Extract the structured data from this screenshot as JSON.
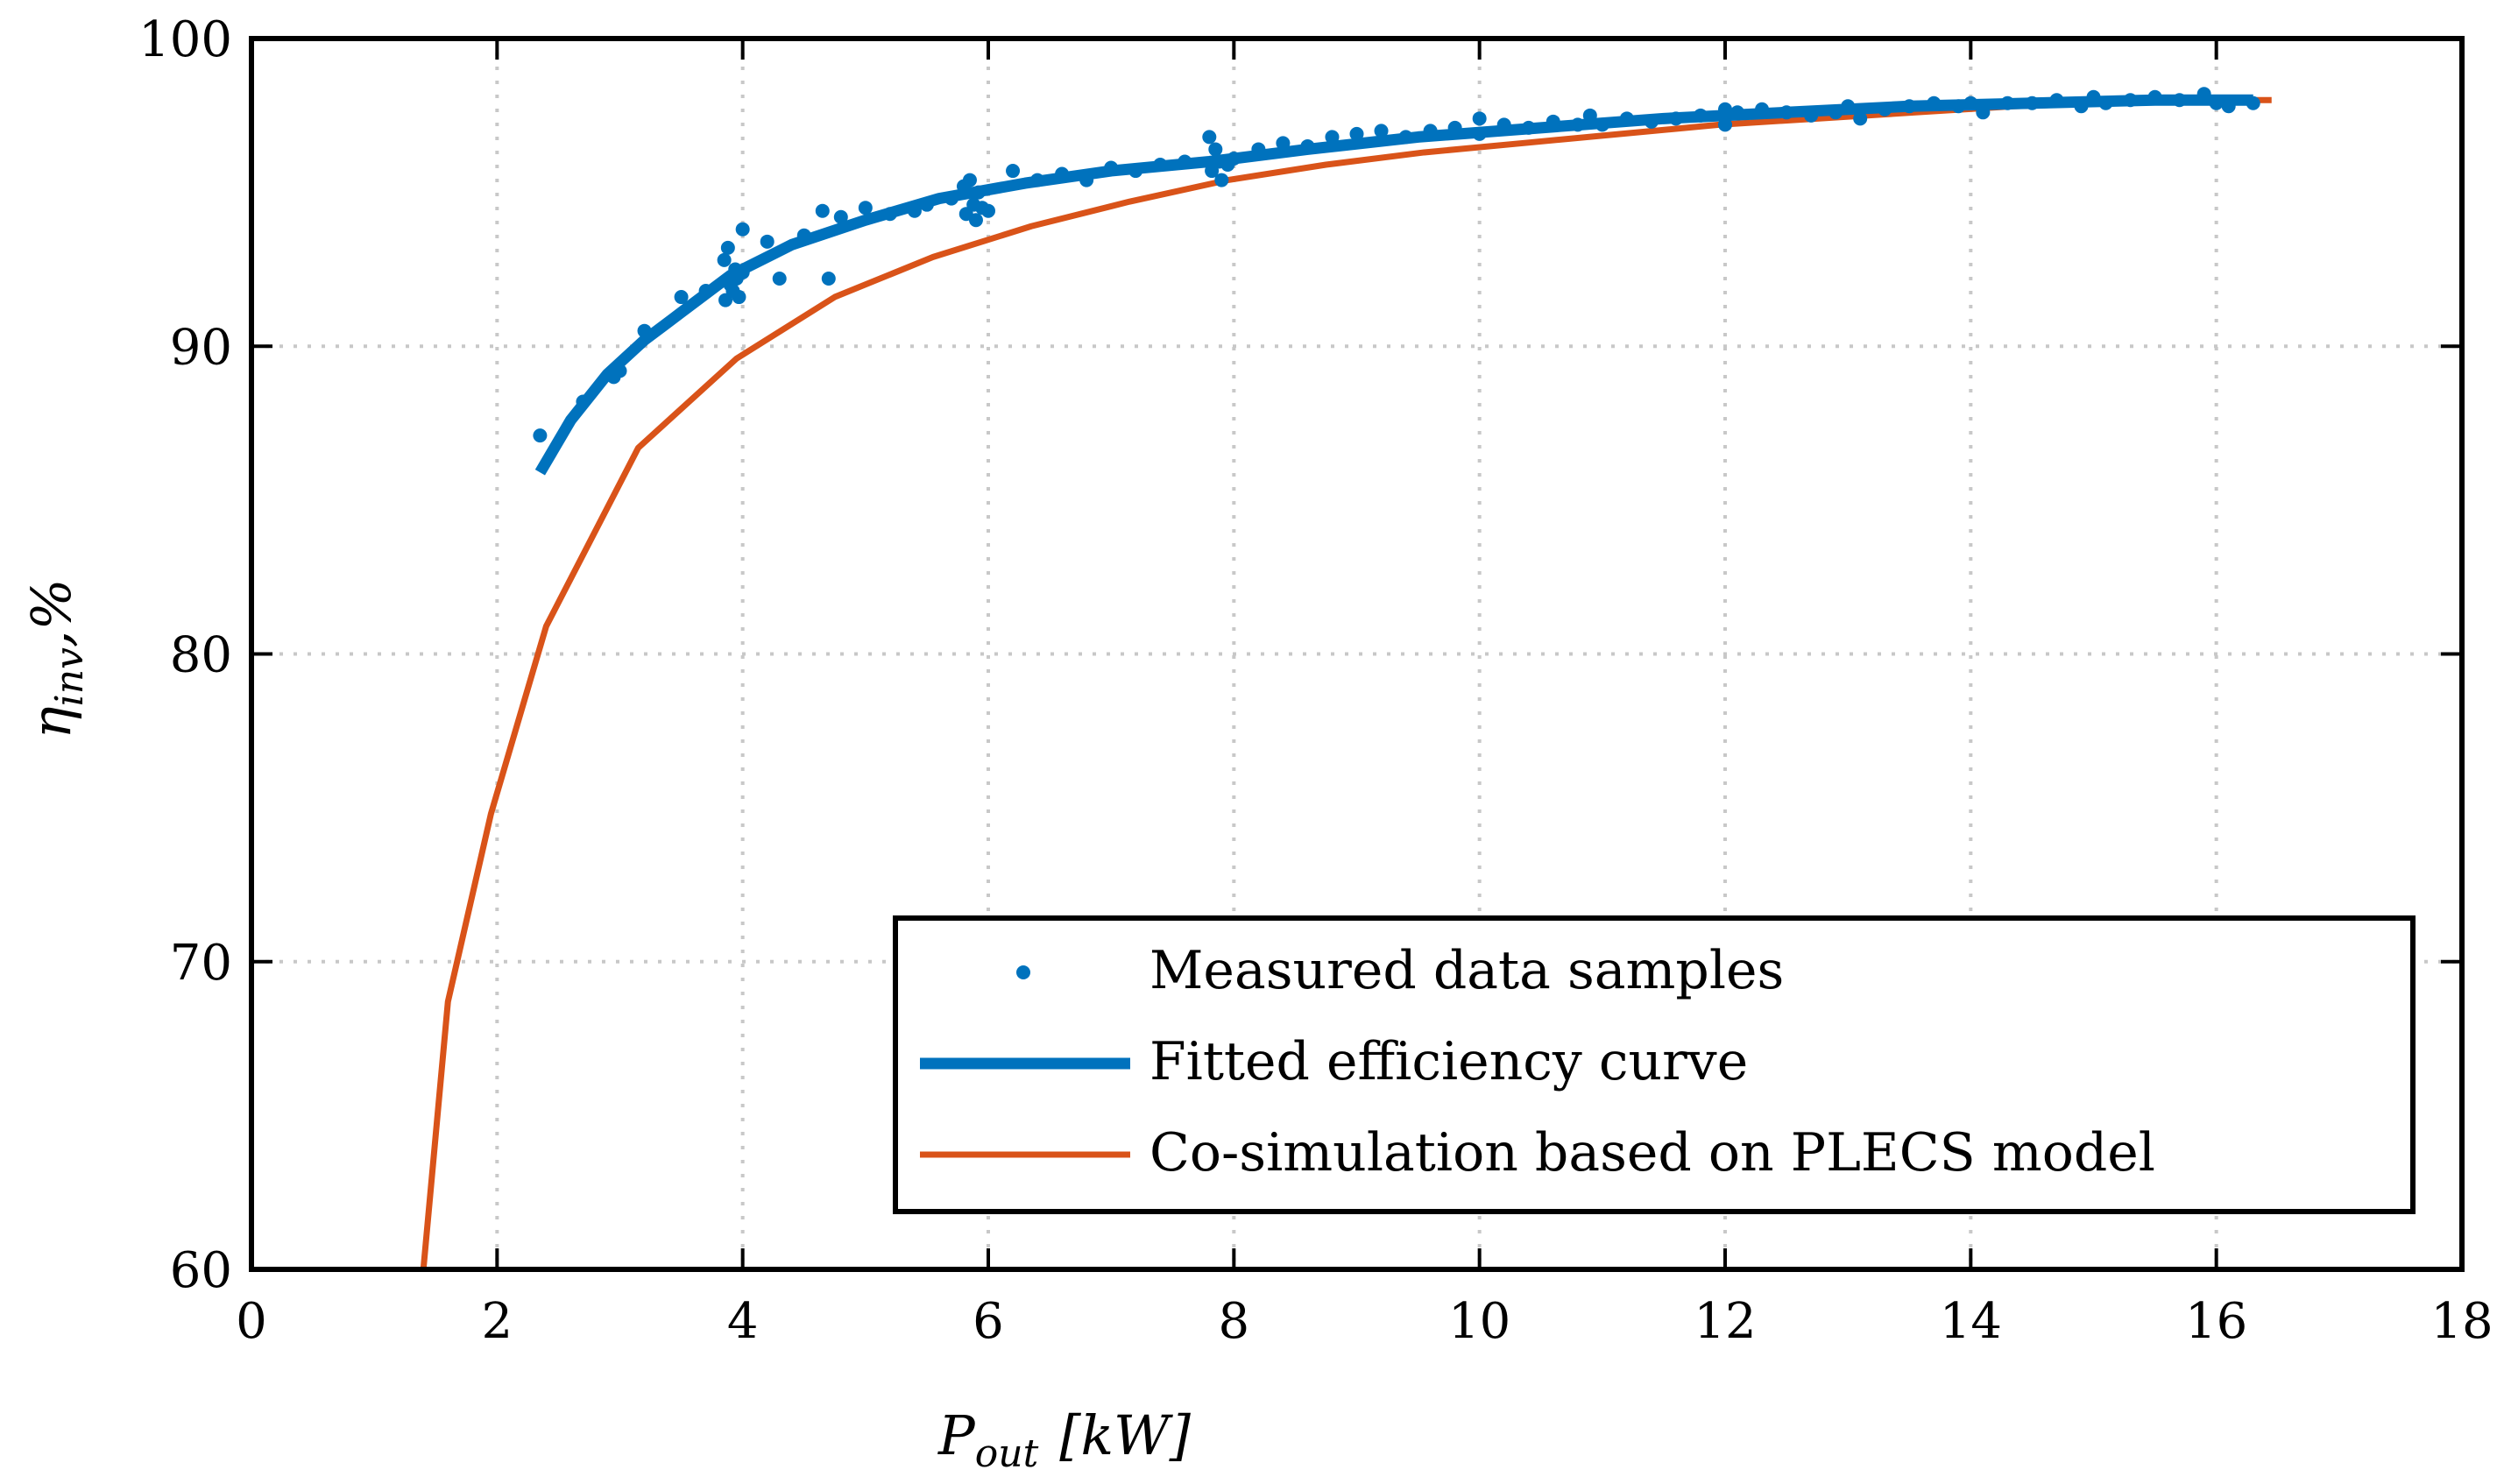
{
  "chart_data": {
    "type": "scatter",
    "title": "",
    "xlabel": {
      "main": "P",
      "sub": "out",
      "unit": "[kW]"
    },
    "ylabel": {
      "main": "η",
      "sub": "inv",
      "unit": ",%"
    },
    "xlim": [
      0,
      18
    ],
    "ylim": [
      60,
      100
    ],
    "xticks": [
      0,
      2,
      4,
      6,
      8,
      10,
      12,
      14,
      16,
      18
    ],
    "yticks": [
      60,
      70,
      80,
      90,
      100
    ],
    "xtick_labels": [
      "0",
      "2",
      "4",
      "6",
      "8",
      "10",
      "12",
      "14",
      "16",
      "18"
    ],
    "ytick_labels": [
      "60",
      "70",
      "80",
      "90",
      "100"
    ],
    "grid": true,
    "legend_position": "bottom-right",
    "colors": {
      "measured": "#0072BD",
      "fitted": "#0072BD",
      "plecs": "#D95319",
      "axis": "#000000",
      "grid": "#c8c8c8"
    },
    "series": [
      {
        "name": "Measured data samples",
        "kind": "scatter",
        "x": [
          2.35,
          2.7,
          2.95,
          3.0,
          3.2,
          3.5,
          3.7,
          3.85,
          3.86,
          3.88,
          3.9,
          3.92,
          3.94,
          3.95,
          3.97,
          4.0,
          4.0,
          4.2,
          4.3,
          4.5,
          4.65,
          4.7,
          4.8,
          5.0,
          5.2,
          5.4,
          5.5,
          5.7,
          5.8,
          5.82,
          5.85,
          5.88,
          5.9,
          5.92,
          5.95,
          6.0,
          6.2,
          6.4,
          6.6,
          6.8,
          7.0,
          7.2,
          7.4,
          7.6,
          7.8,
          7.82,
          7.85,
          7.88,
          7.9,
          7.95,
          8.0,
          8.2,
          8.4,
          8.6,
          8.8,
          9.0,
          9.2,
          9.4,
          9.6,
          9.8,
          10.0,
          10.0,
          10.2,
          10.4,
          10.6,
          10.8,
          10.9,
          11.0,
          11.2,
          11.4,
          11.6,
          11.8,
          12.0,
          12.0,
          12.1,
          12.3,
          12.5,
          12.7,
          12.9,
          13.0,
          13.1,
          13.3,
          13.5,
          13.7,
          13.9,
          14.0,
          14.1,
          14.3,
          14.5,
          14.7,
          14.9,
          15.0,
          15.1,
          15.3,
          15.5,
          15.7,
          15.9,
          16.0,
          16.1,
          16.3
        ],
        "y": [
          87.1,
          88.2,
          89.0,
          89.2,
          90.5,
          91.6,
          91.8,
          92.8,
          91.5,
          93.2,
          92.0,
          91.8,
          92.5,
          92.2,
          91.6,
          93.8,
          92.4,
          93.4,
          92.2,
          93.6,
          94.4,
          92.2,
          94.2,
          94.5,
          94.3,
          94.4,
          94.6,
          94.8,
          95.2,
          94.3,
          95.4,
          94.6,
          94.1,
          95.0,
          94.5,
          94.4,
          95.7,
          95.4,
          95.6,
          95.4,
          95.8,
          95.7,
          95.9,
          96.0,
          96.8,
          95.7,
          96.4,
          96.0,
          95.4,
          95.9,
          96.1,
          96.4,
          96.6,
          96.5,
          96.8,
          96.9,
          97.0,
          96.8,
          97.0,
          97.1,
          96.9,
          97.4,
          97.2,
          97.1,
          97.3,
          97.2,
          97.5,
          97.2,
          97.4,
          97.3,
          97.4,
          97.5,
          97.7,
          97.2,
          97.6,
          97.7,
          97.6,
          97.5,
          97.6,
          97.8,
          97.4,
          97.7,
          97.8,
          97.9,
          97.8,
          97.9,
          97.6,
          97.9,
          97.9,
          98.0,
          97.8,
          98.1,
          97.9,
          98.0,
          98.1,
          98.0,
          98.2,
          97.9,
          97.8,
          97.9
        ]
      },
      {
        "name": "Fitted efficiency curve",
        "kind": "line",
        "x": [
          2.35,
          2.6,
          2.9,
          3.2,
          3.5,
          3.9,
          4.4,
          5.0,
          5.6,
          6.3,
          7.0,
          7.8,
          8.6,
          9.5,
          10.5,
          11.5,
          12.5,
          13.5,
          14.5,
          15.5,
          16.3
        ],
        "y": [
          85.9,
          87.6,
          89.1,
          90.2,
          91.1,
          92.3,
          93.3,
          94.1,
          94.8,
          95.3,
          95.7,
          96.0,
          96.4,
          96.8,
          97.1,
          97.4,
          97.6,
          97.8,
          97.9,
          98.0,
          98.0
        ]
      },
      {
        "name": "Co-simulation based on PLECS model",
        "kind": "line",
        "x": [
          1.4,
          1.6,
          1.95,
          2.4,
          3.15,
          3.95,
          4.75,
          5.55,
          6.35,
          7.15,
          7.95,
          8.75,
          9.55,
          10.35,
          11.15,
          11.95,
          12.75,
          13.55,
          14.35,
          15.15,
          15.95,
          16.45
        ],
        "y": [
          60.0,
          68.7,
          74.8,
          80.9,
          86.7,
          89.6,
          91.6,
          92.9,
          93.9,
          94.7,
          95.4,
          95.9,
          96.3,
          96.6,
          96.9,
          97.2,
          97.4,
          97.6,
          97.8,
          97.9,
          98.0,
          98.0
        ]
      }
    ]
  }
}
